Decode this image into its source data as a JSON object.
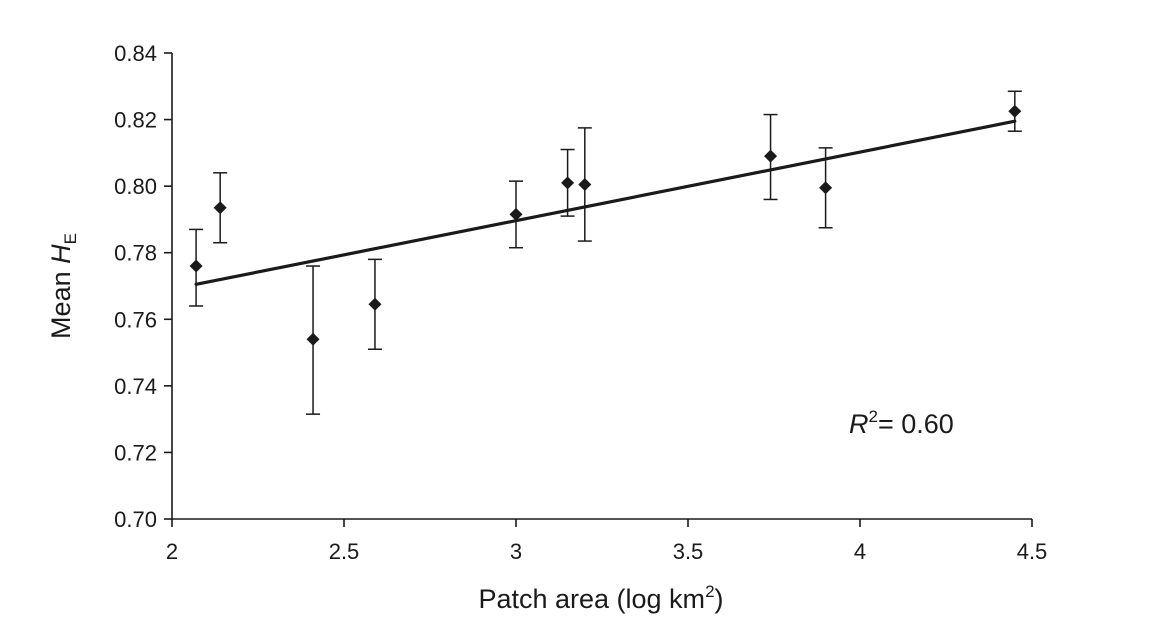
{
  "chart_data": {
    "type": "scatter",
    "xlabel": {
      "main": "Patch area (log km",
      "sup": "2",
      "close": ")"
    },
    "ylabel": {
      "main": "Mean ",
      "italic": "H",
      "sub": "E"
    },
    "xlim": [
      2,
      4.5
    ],
    "ylim": [
      0.7,
      0.84
    ],
    "x_ticks": [
      2,
      2.5,
      3,
      3.5,
      4,
      4.5
    ],
    "x_tick_labels": [
      "2",
      "2.5",
      "3",
      "3.5",
      "4",
      "4.5"
    ],
    "y_ticks": [
      0.7,
      0.72,
      0.74,
      0.76,
      0.78,
      0.8,
      0.82,
      0.84
    ],
    "y_tick_labels": [
      "0.70",
      "0.72",
      "0.74",
      "0.76",
      "0.78",
      "0.80",
      "0.82",
      "0.84"
    ],
    "points": [
      {
        "x": 2.07,
        "y": 0.776,
        "err_low": 0.764,
        "err_high": 0.787
      },
      {
        "x": 2.14,
        "y": 0.7935,
        "err_low": 0.783,
        "err_high": 0.804
      },
      {
        "x": 2.41,
        "y": 0.754,
        "err_low": 0.7315,
        "err_high": 0.776
      },
      {
        "x": 2.59,
        "y": 0.7645,
        "err_low": 0.751,
        "err_high": 0.778
      },
      {
        "x": 3.0,
        "y": 0.7915,
        "err_low": 0.7815,
        "err_high": 0.8015
      },
      {
        "x": 3.15,
        "y": 0.801,
        "err_low": 0.791,
        "err_high": 0.811
      },
      {
        "x": 3.2,
        "y": 0.8005,
        "err_low": 0.7835,
        "err_high": 0.8175
      },
      {
        "x": 3.74,
        "y": 0.809,
        "err_low": 0.796,
        "err_high": 0.8215
      },
      {
        "x": 3.9,
        "y": 0.7995,
        "err_low": 0.7875,
        "err_high": 0.8115
      },
      {
        "x": 4.45,
        "y": 0.8225,
        "err_low": 0.8165,
        "err_high": 0.8285
      }
    ],
    "trendline": {
      "x": [
        2.07,
        4.45
      ],
      "y": [
        0.7705,
        0.8195
      ]
    },
    "annotation": {
      "italic": "R",
      "sup": "2",
      "text": "= 0.60"
    },
    "grid": false,
    "legend": "none",
    "colors": {
      "marker": "#1a1a1a",
      "line": "#1a1a1a",
      "axis": "#1a1a1a"
    }
  }
}
